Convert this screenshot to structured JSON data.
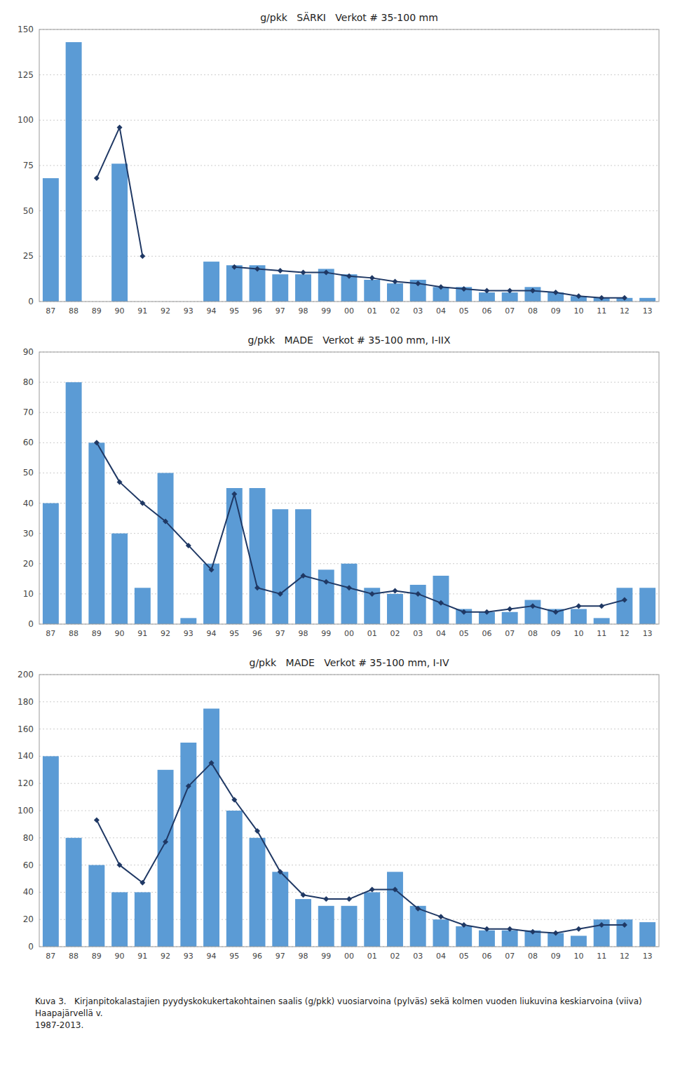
{
  "chart_data": [
    {
      "type": "bar",
      "title": "g/pkk   SÄRKI   Verkot # 35-100 mm",
      "categories": [
        "87",
        "88",
        "89",
        "90",
        "91",
        "92",
        "93",
        "94",
        "95",
        "96",
        "97",
        "98",
        "99",
        "00",
        "01",
        "02",
        "03",
        "04",
        "05",
        "06",
        "07",
        "08",
        "09",
        "10",
        "11",
        "12",
        "13"
      ],
      "series": [
        {
          "type": "bar",
          "color": "#5B9BD5",
          "values": [
            68,
            143,
            0,
            76,
            0,
            0,
            0,
            22,
            20,
            20,
            15,
            15,
            18,
            15,
            12,
            10,
            12,
            8,
            8,
            5,
            5,
            8,
            5,
            3,
            2,
            2,
            2
          ]
        },
        {
          "type": "line",
          "color": "#1F3864",
          "marker": "diamond",
          "values": [
            null,
            null,
            68,
            96,
            25,
            null,
            null,
            null,
            19,
            18,
            17,
            16,
            16,
            14,
            13,
            11,
            10,
            8,
            7,
            6,
            6,
            6,
            5,
            3,
            2,
            2,
            null
          ]
        }
      ],
      "ylim": [
        0,
        150
      ],
      "yticks": [
        0,
        25,
        50,
        75,
        100,
        125,
        150
      ],
      "grid": true
    },
    {
      "type": "bar",
      "title": "g/pkk   MADE   Verkot # 35-100 mm, I-IIX",
      "categories": [
        "87",
        "88",
        "89",
        "90",
        "91",
        "92",
        "93",
        "94",
        "95",
        "96",
        "97",
        "98",
        "99",
        "00",
        "01",
        "02",
        "03",
        "04",
        "05",
        "06",
        "07",
        "08",
        "09",
        "10",
        "11",
        "12",
        "13"
      ],
      "series": [
        {
          "type": "bar",
          "color": "#5B9BD5",
          "values": [
            40,
            80,
            60,
            30,
            12,
            50,
            2,
            20,
            45,
            45,
            38,
            38,
            18,
            20,
            12,
            10,
            13,
            16,
            5,
            4,
            4,
            8,
            5,
            5,
            2,
            12,
            12
          ]
        },
        {
          "type": "line",
          "color": "#1F3864",
          "marker": "diamond",
          "values": [
            null,
            null,
            60,
            47,
            40,
            34,
            26,
            18,
            43,
            12,
            10,
            16,
            14,
            12,
            10,
            11,
            10,
            7,
            4,
            4,
            5,
            6,
            4,
            6,
            6,
            8,
            null
          ]
        }
      ],
      "ylim": [
        0,
        90
      ],
      "yticks": [
        0,
        10,
        20,
        30,
        40,
        50,
        60,
        70,
        80,
        90
      ],
      "grid": true
    },
    {
      "type": "bar",
      "title": "g/pkk   MADE   Verkot # 35-100 mm, I-IV",
      "categories": [
        "87",
        "88",
        "89",
        "90",
        "91",
        "92",
        "93",
        "94",
        "95",
        "96",
        "97",
        "98",
        "99",
        "00",
        "01",
        "02",
        "03",
        "04",
        "05",
        "06",
        "07",
        "08",
        "09",
        "10",
        "11",
        "12",
        "13"
      ],
      "series": [
        {
          "type": "bar",
          "color": "#5B9BD5",
          "values": [
            140,
            80,
            60,
            40,
            40,
            130,
            150,
            175,
            100,
            80,
            55,
            35,
            30,
            30,
            40,
            55,
            30,
            20,
            15,
            12,
            12,
            12,
            10,
            8,
            20,
            20,
            18
          ]
        },
        {
          "type": "line",
          "color": "#1F3864",
          "marker": "diamond",
          "values": [
            null,
            null,
            93,
            60,
            47,
            77,
            118,
            135,
            108,
            85,
            55,
            38,
            35,
            35,
            42,
            42,
            28,
            22,
            16,
            13,
            13,
            11,
            10,
            13,
            16,
            16,
            null
          ]
        }
      ],
      "ylim": [
        0,
        200
      ],
      "yticks": [
        0,
        20,
        40,
        60,
        80,
        100,
        120,
        140,
        160,
        180,
        200
      ],
      "grid": true
    }
  ],
  "caption": "Kuva 3.   Kirjanpitokalastajien pyydyskokukertakohtainen saalis (g/pkk) vuosiarvoina (pylväs) sekä kolmen vuoden liukuvina keskiarvoina (viiva) Haapajärvellä v.\n1987-2013."
}
